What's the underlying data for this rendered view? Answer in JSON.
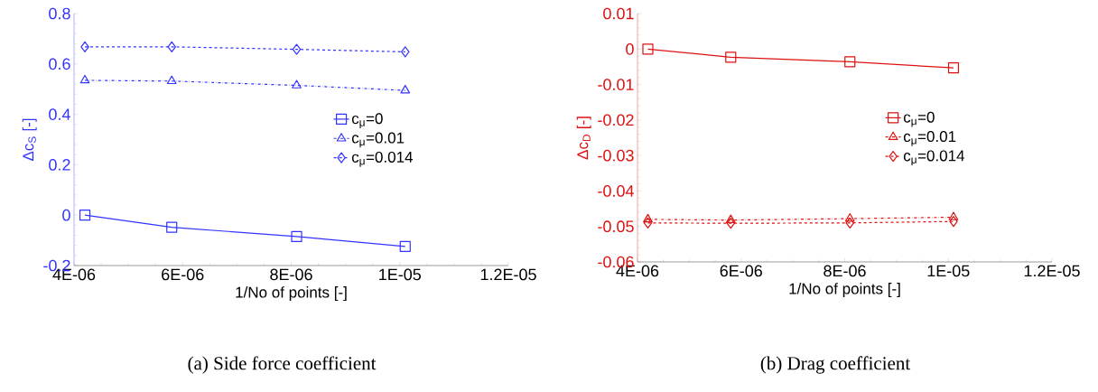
{
  "chart_data": [
    {
      "type": "line",
      "title": "(a) Side force coefficient",
      "xlabel": "1/No of points [-]",
      "ylabel": "Δc$_{S}$ [-]",
      "x": [
        4.2e-06,
        5.8e-06,
        8.1e-06,
        1.01e-05
      ],
      "xlim": [
        4e-06,
        1.2e-05
      ],
      "ylim": [
        -0.2,
        0.8
      ],
      "xticks": [
        {
          "value": 4e-06,
          "label": "4E-06"
        },
        {
          "value": 6e-06,
          "label": "6E-06"
        },
        {
          "value": 8e-06,
          "label": "8E-06"
        },
        {
          "value": 1e-05,
          "label": "1E-05"
        },
        {
          "value": 1.2e-05,
          "label": "1.2E-05"
        }
      ],
      "yticks": [
        -0.2,
        0,
        0.2,
        0.4,
        0.6,
        0.8
      ],
      "legend": "right",
      "grid": false,
      "series": [
        {
          "name": "c$_{μ}$=0",
          "color": "#3333ff",
          "marker": "square",
          "line_style": "solid",
          "values": [
            0,
            -0.048,
            -0.085,
            -0.124
          ]
        },
        {
          "name": "c$_{μ}$=0.01",
          "color": "#3333ff",
          "marker": "triangle",
          "line_style": "dashdot",
          "values": [
            0.535,
            0.532,
            0.515,
            0.495
          ]
        },
        {
          "name": "c$_{μ}$=0.014",
          "color": "#3333ff",
          "marker": "diamond",
          "line_style": "dashed",
          "values": [
            0.668,
            0.668,
            0.658,
            0.648
          ]
        }
      ]
    },
    {
      "type": "line",
      "title": "(b) Drag coefficient",
      "xlabel": "1/No of points [-]",
      "ylabel": "Δc$_{D}$ [-]",
      "x": [
        4.2e-06,
        5.8e-06,
        8.1e-06,
        1.01e-05
      ],
      "xlim": [
        4e-06,
        1.2e-05
      ],
      "ylim": [
        -0.06,
        0.01
      ],
      "xticks": [
        {
          "value": 4e-06,
          "label": "4E-06"
        },
        {
          "value": 6e-06,
          "label": "6E-06"
        },
        {
          "value": 8e-06,
          "label": "8E-06"
        },
        {
          "value": 1e-05,
          "label": "1E-05"
        },
        {
          "value": 1.2e-05,
          "label": "1.2E-05"
        }
      ],
      "yticks": [
        -0.06,
        -0.05,
        -0.04,
        -0.03,
        -0.02,
        -0.01,
        0,
        0.01
      ],
      "legend": "right",
      "grid": false,
      "series": [
        {
          "name": "c$_{μ}$=0",
          "color": "#dd1111",
          "marker": "square",
          "line_style": "solid",
          "values": [
            0,
            -0.0023,
            -0.0036,
            -0.0053
          ]
        },
        {
          "name": "c$_{μ}$=0.01",
          "color": "#dd1111",
          "marker": "triangle",
          "line_style": "dashdot",
          "values": [
            -0.048,
            -0.0482,
            -0.0478,
            -0.0474
          ]
        },
        {
          "name": "c$_{μ}$=0.014",
          "color": "#dd1111",
          "marker": "diamond",
          "line_style": "dashed",
          "values": [
            -0.049,
            -0.0491,
            -0.049,
            -0.0486
          ]
        }
      ]
    }
  ]
}
